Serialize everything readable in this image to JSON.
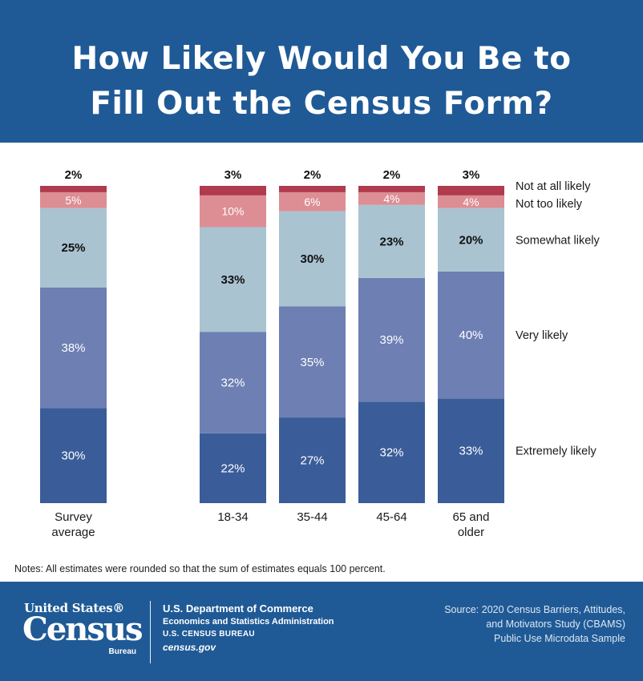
{
  "header": {
    "title_line1": "How Likely Would You Be to",
    "title_line2": "Fill Out the Census Form?"
  },
  "chart_data": {
    "type": "bar",
    "stacked": true,
    "percent_stacked": true,
    "categories": [
      "Survey average",
      "18-34",
      "35-44",
      "45-64",
      "65 and older"
    ],
    "category_labels": [
      [
        "Survey",
        "average"
      ],
      [
        "18-34"
      ],
      [
        "35-44"
      ],
      [
        "45-64"
      ],
      [
        "65 and",
        "older"
      ]
    ],
    "series": [
      {
        "name": "Extremely likely",
        "values": [
          30,
          22,
          27,
          32,
          33
        ],
        "color": "#3a5d99"
      },
      {
        "name": "Very likely",
        "values": [
          38,
          32,
          35,
          39,
          40
        ],
        "color": "#6d7fb3"
      },
      {
        "name": "Somewhat likely",
        "values": [
          25,
          33,
          30,
          23,
          20
        ],
        "color": "#a9c3d1"
      },
      {
        "name": "Not too likely",
        "values": [
          5,
          10,
          6,
          4,
          4
        ],
        "color": "#dc8e94"
      },
      {
        "name": "Not at all likely",
        "values": [
          2,
          3,
          2,
          2,
          3
        ],
        "color": "#b03a4e"
      }
    ],
    "value_labels": {
      "Extremely likely": [
        "30%",
        "22%",
        "27%",
        "32%",
        "33%"
      ],
      "Very likely": [
        "38%",
        "32%",
        "35%",
        "39%",
        "40%"
      ],
      "Somewhat likely": [
        "25%",
        "33%",
        "30%",
        "23%",
        "20%"
      ],
      "Not too likely": [
        "5%",
        "10%",
        "6%",
        "4%",
        "4%"
      ],
      "Not at all likely": [
        "2%",
        "3%",
        "2%",
        "2%",
        "3%"
      ]
    },
    "legend_placement": "right, beside each segment",
    "ylim": [
      0,
      100
    ],
    "grid": false
  },
  "notes": "Notes: All estimates were rounded so that the sum of estimates equals 100 percent.",
  "footer": {
    "logo_top": "United States®",
    "logo_main": "Census",
    "logo_sub": "Bureau",
    "dept_line1": "U.S. Department of Commerce",
    "dept_line2": "Economics and Statistics Administration",
    "dept_line3": "U.S. CENSUS BUREAU",
    "dept_line4": "census.gov",
    "source_line1": "Source: 2020 Census Barriers, Attitudes,",
    "source_line2": "and Motivators Study (CBAMS)",
    "source_line3": "Public Use Microdata Sample"
  }
}
